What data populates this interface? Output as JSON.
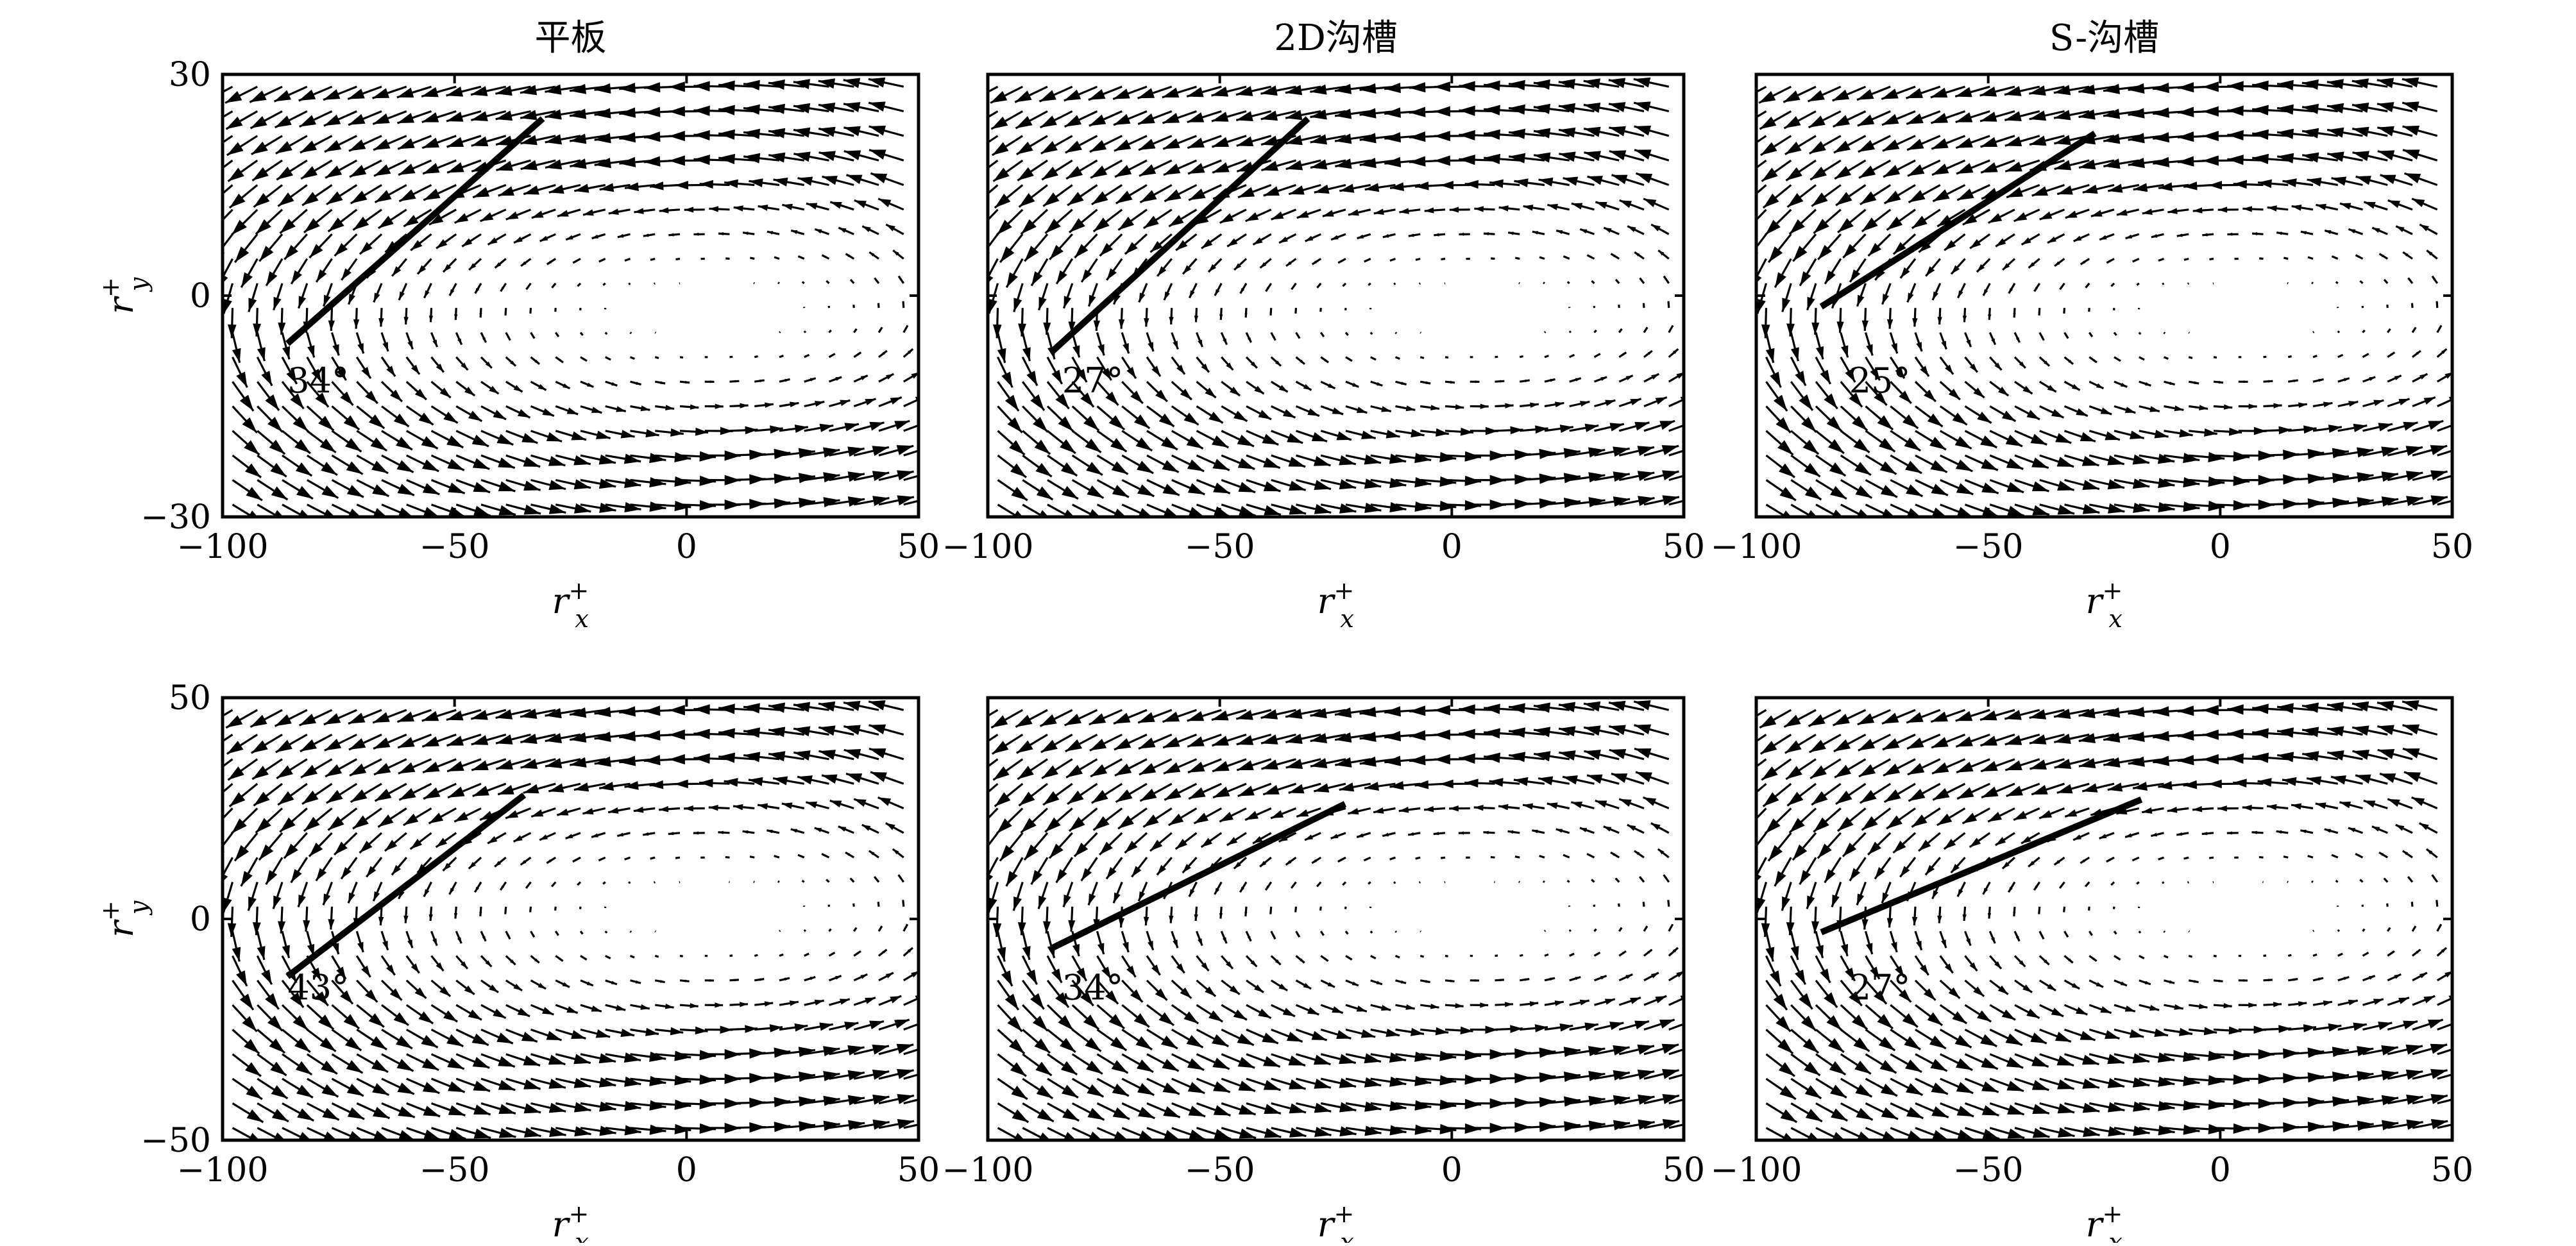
{
  "chart_data": [
    {
      "type": "quiver",
      "title": "平板",
      "xlabel": "r_x^+",
      "ylabel": "r_y^+",
      "xlim": [
        -100,
        50
      ],
      "ylim": [
        -30,
        30
      ],
      "xticks": [
        -100,
        -50,
        0,
        50
      ],
      "xtick_labels": [
        "−100",
        "−50",
        "0",
        "50"
      ],
      "yticks": [
        -30,
        0,
        30
      ],
      "ytick_labels": [
        "−30",
        "0",
        "30"
      ],
      "line": {
        "x0": -86,
        "y0": -6.5,
        "x1": -31,
        "y1": 24
      },
      "angle_label": "34°",
      "angle_pos": [
        -86,
        -10
      ],
      "vortex": {
        "cx": 5,
        "cy": -2,
        "rx": 60,
        "ry": 15
      }
    },
    {
      "type": "quiver",
      "title": "2D沟槽",
      "xlabel": "r_x^+",
      "ylabel": "",
      "xlim": [
        -100,
        50
      ],
      "ylim": [
        -30,
        30
      ],
      "xticks": [
        -100,
        -50,
        0,
        50
      ],
      "xtick_labels": [
        "−100",
        "−50",
        "0",
        "50"
      ],
      "yticks": [
        -30,
        0,
        30
      ],
      "ytick_labels": [],
      "line": {
        "x0": -86,
        "y0": -7.5,
        "x1": -31,
        "y1": 24
      },
      "angle_label": "27°",
      "angle_pos": [
        -84,
        -10
      ],
      "vortex": {
        "cx": 5,
        "cy": -2,
        "rx": 60,
        "ry": 15
      }
    },
    {
      "type": "quiver",
      "title": "S-沟槽",
      "xlabel": "r_x^+",
      "ylabel": "",
      "xlim": [
        -100,
        50
      ],
      "ylim": [
        -30,
        30
      ],
      "xticks": [
        -100,
        -50,
        0,
        50
      ],
      "xtick_labels": [
        "−100",
        "−50",
        "0",
        "50"
      ],
      "yticks": [
        -30,
        0,
        30
      ],
      "ytick_labels": [],
      "line": {
        "x0": -86,
        "y0": -1.5,
        "x1": -27,
        "y1": 22
      },
      "angle_label": "25°",
      "angle_pos": [
        -80,
        -10
      ],
      "vortex": {
        "cx": 5,
        "cy": -2,
        "rx": 60,
        "ry": 15
      }
    },
    {
      "type": "quiver",
      "title": "",
      "xlabel": "r_x^+",
      "ylabel": "r_y^+",
      "xlim": [
        -100,
        50
      ],
      "ylim": [
        -50,
        50
      ],
      "xticks": [
        -100,
        -50,
        0,
        50
      ],
      "xtick_labels": [
        "−100",
        "−50",
        "0",
        "50"
      ],
      "yticks": [
        -50,
        0,
        50
      ],
      "ytick_labels": [
        "−50",
        "0",
        "50"
      ],
      "line": {
        "x0": -86,
        "y0": -13,
        "x1": -35,
        "y1": 28
      },
      "angle_label": "43°",
      "angle_pos": [
        -86,
        -13
      ],
      "vortex": {
        "cx": 5,
        "cy": 2,
        "rx": 60,
        "ry": 25
      }
    },
    {
      "type": "quiver",
      "title": "",
      "xlabel": "r_x^+",
      "ylabel": "",
      "xlim": [
        -100,
        50
      ],
      "ylim": [
        -50,
        50
      ],
      "xticks": [
        -100,
        -50,
        0,
        50
      ],
      "xtick_labels": [
        "−100",
        "−50",
        "0",
        "50"
      ],
      "yticks": [
        -50,
        0,
        50
      ],
      "ytick_labels": [],
      "line": {
        "x0": -86,
        "y0": -6.5,
        "x1": -23,
        "y1": 26
      },
      "angle_label": "34°",
      "angle_pos": [
        -84,
        -13
      ],
      "vortex": {
        "cx": 5,
        "cy": 2,
        "rx": 60,
        "ry": 25
      }
    },
    {
      "type": "quiver",
      "title": "",
      "xlabel": "r_x^+",
      "ylabel": "",
      "xlim": [
        -100,
        50
      ],
      "ylim": [
        -50,
        50
      ],
      "xticks": [
        -100,
        -50,
        0,
        50
      ],
      "xtick_labels": [
        "−100",
        "−50",
        "0",
        "50"
      ],
      "yticks": [
        -50,
        0,
        50
      ],
      "ytick_labels": [],
      "line": {
        "x0": -86,
        "y0": -3,
        "x1": -17,
        "y1": 27
      },
      "angle_label": "27°",
      "angle_pos": [
        -80,
        -13
      ],
      "vortex": {
        "cx": 5,
        "cy": 2,
        "rx": 60,
        "ry": 25
      }
    }
  ]
}
